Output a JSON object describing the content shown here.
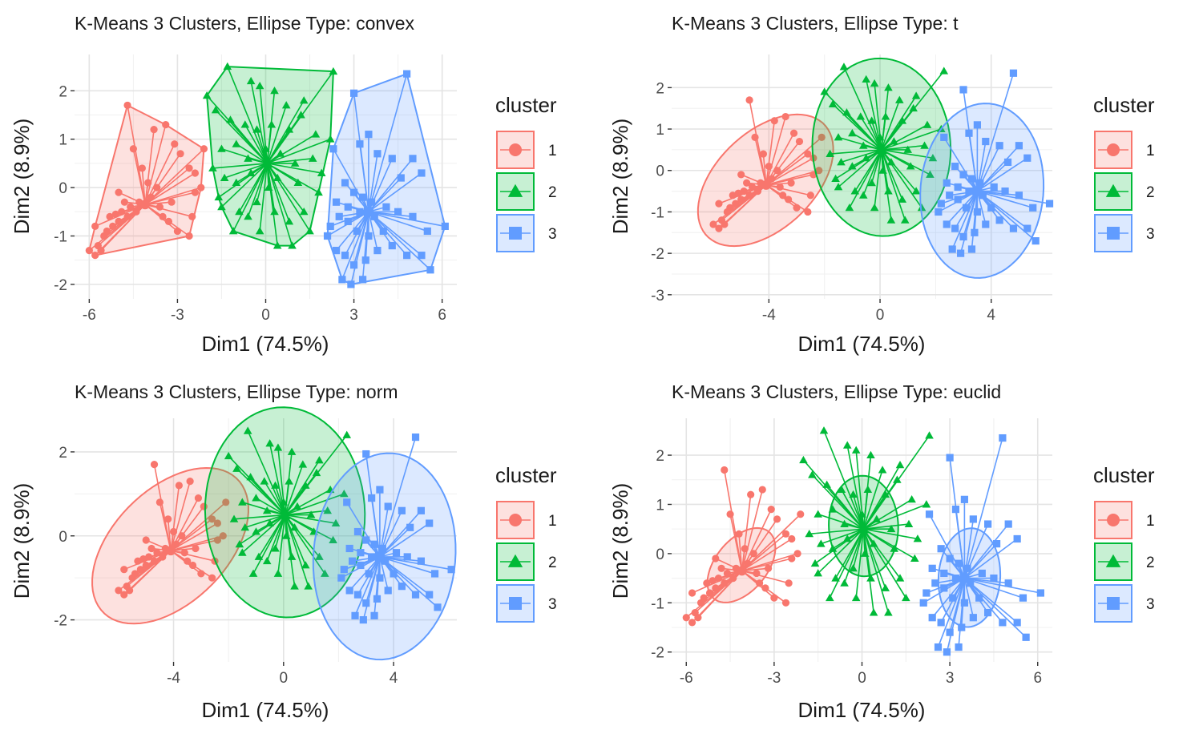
{
  "colors": {
    "1": "#F8766D",
    "2": "#00BA38",
    "3": "#619CFF"
  },
  "legend": {
    "title": "cluster",
    "items": [
      "1",
      "2",
      "3"
    ]
  },
  "chart_data": [
    {
      "type": "scatter",
      "title": "K-Means 3 Clusters, Ellipse Type: convex",
      "ellipse_type": "convex",
      "xlabel": "Dim1 (74.5%)",
      "ylabel": "Dim2 (8.9%)",
      "xlim": [
        -6.5,
        6.5
      ],
      "ylim": [
        -2.3,
        2.75
      ],
      "x_ticks": [
        -6,
        -3,
        0,
        3,
        6
      ],
      "x_tick_labels": [
        "-6",
        "-3",
        "0",
        "3",
        "6"
      ],
      "y_ticks": [
        -2,
        -1,
        0,
        1,
        2
      ],
      "y_tick_labels": [
        "-2",
        "-1",
        "0",
        "1",
        "2"
      ],
      "grid": true
    },
    {
      "type": "scatter",
      "title": "K-Means 3 Clusters, Ellipse Type: t",
      "ellipse_type": "t",
      "xlabel": "Dim1 (74.5%)",
      "ylabel": "Dim2 (8.9%)",
      "xlim": [
        -7.5,
        6.2
      ],
      "ylim": [
        -3.1,
        2.8
      ],
      "x_ticks": [
        -4,
        0,
        4
      ],
      "x_tick_labels": [
        "-4",
        "0",
        "4"
      ],
      "y_ticks": [
        -3,
        -2,
        -1,
        0,
        1,
        2
      ],
      "y_tick_labels": [
        "-3",
        "-2",
        "-1",
        "0",
        "1",
        "2"
      ],
      "grid": true
    },
    {
      "type": "scatter",
      "title": "K-Means 3 Clusters, Ellipse Type: norm",
      "ellipse_type": "norm",
      "xlabel": "Dim1 (74.5%)",
      "ylabel": "Dim2 (8.9%)",
      "xlim": [
        -7.6,
        6.3
      ],
      "ylim": [
        -3.0,
        2.8
      ],
      "x_ticks": [
        -4,
        0,
        4
      ],
      "x_tick_labels": [
        "-4",
        "0",
        "4"
      ],
      "y_ticks": [
        -2,
        0,
        2
      ],
      "y_tick_labels": [
        "-2",
        "0",
        "2"
      ],
      "grid": true
    },
    {
      "type": "scatter",
      "title": "K-Means 3 Clusters, Ellipse Type: euclid",
      "ellipse_type": "euclid",
      "xlabel": "Dim1 (74.5%)",
      "ylabel": "Dim2 (8.9%)",
      "xlim": [
        -6.5,
        6.5
      ],
      "ylim": [
        -2.2,
        2.75
      ],
      "x_ticks": [
        -6,
        -3,
        0,
        3,
        6
      ],
      "x_tick_labels": [
        "-6",
        "-3",
        "0",
        "3",
        "6"
      ],
      "y_ticks": [
        -2,
        -1,
        0,
        1,
        2
      ],
      "y_tick_labels": [
        "-2",
        "-1",
        "0",
        "1",
        "2"
      ],
      "grid": true
    }
  ],
  "clusters": [
    {
      "cluster": "1",
      "shape": "circle",
      "centroid": [
        -4.1,
        -0.35
      ],
      "points": [
        [
          -6.0,
          -1.3
        ],
        [
          -5.8,
          -1.4
        ],
        [
          -5.7,
          -1.2
        ],
        [
          -5.5,
          -1.0
        ],
        [
          -5.4,
          -0.9
        ],
        [
          -5.2,
          -0.8
        ],
        [
          -5.0,
          -0.7
        ],
        [
          -5.3,
          -0.6
        ],
        [
          -5.1,
          -0.55
        ],
        [
          -4.9,
          -0.5
        ],
        [
          -4.7,
          -0.6
        ],
        [
          -4.6,
          -0.4
        ],
        [
          -4.4,
          -0.5
        ],
        [
          -4.3,
          -0.3
        ],
        [
          -4.8,
          -0.3
        ],
        [
          -5.0,
          -0.1
        ],
        [
          -4.7,
          1.7
        ],
        [
          -4.5,
          0.8
        ],
        [
          -4.2,
          0.4
        ],
        [
          -3.8,
          1.2
        ],
        [
          -3.4,
          1.3
        ],
        [
          -3.1,
          0.9
        ],
        [
          -2.9,
          0.7
        ],
        [
          -2.6,
          0.4
        ],
        [
          -2.4,
          0.3
        ],
        [
          -2.1,
          0.8
        ],
        [
          -2.4,
          -0.1
        ],
        [
          -2.2,
          0.0
        ],
        [
          -2.5,
          -0.6
        ],
        [
          -2.6,
          -1.0
        ],
        [
          -3.0,
          -0.9
        ],
        [
          -3.3,
          -0.7
        ],
        [
          -3.5,
          -0.6
        ],
        [
          -3.6,
          -0.4
        ],
        [
          -3.9,
          -0.2
        ],
        [
          -4.0,
          0.1
        ],
        [
          -3.7,
          0.0
        ],
        [
          -5.8,
          -0.8
        ],
        [
          -5.6,
          -1.3
        ],
        [
          -3.2,
          -0.3
        ]
      ]
    },
    {
      "cluster": "2",
      "shape": "triangle",
      "centroid": [
        0.05,
        0.5
      ],
      "points": [
        [
          -1.3,
          2.5
        ],
        [
          -0.5,
          2.2
        ],
        [
          -0.2,
          2.1
        ],
        [
          0.3,
          2.0
        ],
        [
          0.7,
          1.7
        ],
        [
          1.3,
          1.8
        ],
        [
          2.3,
          2.4
        ],
        [
          -2.0,
          1.9
        ],
        [
          -1.7,
          1.6
        ],
        [
          -1.2,
          1.4
        ],
        [
          -0.7,
          1.3
        ],
        [
          -0.3,
          1.2
        ],
        [
          0.2,
          1.3
        ],
        [
          0.8,
          1.2
        ],
        [
          1.2,
          1.5
        ],
        [
          1.7,
          1.1
        ],
        [
          2.2,
          1.0
        ],
        [
          -1.5,
          0.8
        ],
        [
          -1.0,
          0.9
        ],
        [
          -0.6,
          0.6
        ],
        [
          0.0,
          0.8
        ],
        [
          0.5,
          0.7
        ],
        [
          1.0,
          0.5
        ],
        [
          1.6,
          0.6
        ],
        [
          1.9,
          0.3
        ],
        [
          -1.8,
          0.4
        ],
        [
          -1.4,
          0.2
        ],
        [
          -1.0,
          0.1
        ],
        [
          -0.5,
          0.3
        ],
        [
          0.4,
          0.2
        ],
        [
          1.1,
          0.1
        ],
        [
          1.8,
          -0.1
        ],
        [
          -1.5,
          -0.4
        ],
        [
          -0.9,
          -0.5
        ],
        [
          -0.3,
          -0.3
        ],
        [
          0.3,
          -0.5
        ],
        [
          0.8,
          -0.7
        ],
        [
          1.3,
          -0.5
        ],
        [
          -1.1,
          -0.9
        ],
        [
          -0.2,
          -0.9
        ],
        [
          0.4,
          -1.2
        ],
        [
          0.9,
          -1.2
        ],
        [
          -0.6,
          -0.6
        ],
        [
          1.5,
          -0.9
        ],
        [
          -1.6,
          -0.2
        ],
        [
          0.1,
          0.0
        ]
      ]
    },
    {
      "cluster": "3",
      "shape": "square",
      "centroid": [
        3.5,
        -0.5
      ],
      "points": [
        [
          4.8,
          2.35
        ],
        [
          3.0,
          1.95
        ],
        [
          2.3,
          0.8
        ],
        [
          3.2,
          0.9
        ],
        [
          3.5,
          1.1
        ],
        [
          3.8,
          0.7
        ],
        [
          4.3,
          0.6
        ],
        [
          5.0,
          0.6
        ],
        [
          5.3,
          0.3
        ],
        [
          4.6,
          0.2
        ],
        [
          2.7,
          0.1
        ],
        [
          3.0,
          -0.1
        ],
        [
          3.3,
          -0.2
        ],
        [
          3.6,
          -0.3
        ],
        [
          4.1,
          -0.4
        ],
        [
          4.5,
          -0.5
        ],
        [
          5.0,
          -0.6
        ],
        [
          5.5,
          -0.9
        ],
        [
          6.1,
          -0.8
        ],
        [
          5.3,
          -1.4
        ],
        [
          5.6,
          -1.7
        ],
        [
          4.8,
          -1.4
        ],
        [
          4.3,
          -1.2
        ],
        [
          3.8,
          -1.3
        ],
        [
          3.4,
          -1.5
        ],
        [
          3.0,
          -1.6
        ],
        [
          2.7,
          -1.4
        ],
        [
          2.4,
          -1.3
        ],
        [
          2.1,
          -1.0
        ],
        [
          2.2,
          -0.8
        ],
        [
          2.5,
          -0.6
        ],
        [
          2.8,
          -0.7
        ],
        [
          3.1,
          -0.9
        ],
        [
          3.3,
          -1.9
        ],
        [
          2.9,
          -2.0
        ],
        [
          2.6,
          -1.9
        ],
        [
          3.5,
          -1.0
        ],
        [
          4.0,
          -0.9
        ],
        [
          3.7,
          -0.6
        ],
        [
          3.2,
          -0.5
        ],
        [
          2.8,
          -0.4
        ],
        [
          2.4,
          -0.3
        ]
      ]
    }
  ]
}
